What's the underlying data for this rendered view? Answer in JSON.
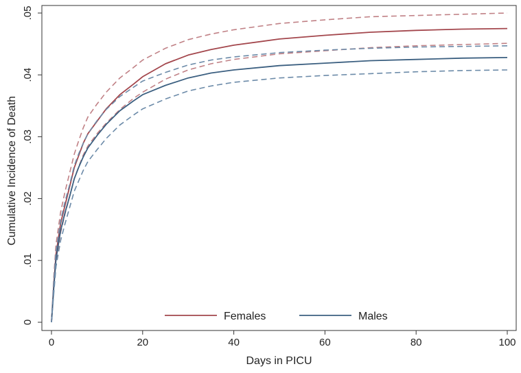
{
  "chart_data": {
    "type": "line",
    "title": "",
    "xlabel": "Days in PICU",
    "ylabel": "Cumulative Incidence of Death",
    "xlim": [
      0,
      100
    ],
    "ylim": [
      0,
      0.05
    ],
    "x_ticks": [
      0,
      20,
      40,
      60,
      80,
      100
    ],
    "x_tick_labels": [
      "0",
      "20",
      "40",
      "60",
      "80",
      "100"
    ],
    "y_ticks": [
      0,
      0.01,
      0.02,
      0.03,
      0.04,
      0.05
    ],
    "y_tick_labels": [
      "0",
      ".01",
      ".02",
      ".03",
      ".04",
      ".05"
    ],
    "grid": false,
    "legend_position": "bottom-center",
    "series": [
      {
        "name": "Females",
        "color": "#a3464c",
        "style": "solid",
        "legend": true,
        "points": [
          [
            0,
            0
          ],
          [
            0.5,
            0.006
          ],
          [
            1,
            0.011
          ],
          [
            2,
            0.016
          ],
          [
            3,
            0.019
          ],
          [
            4,
            0.022
          ],
          [
            5,
            0.025
          ],
          [
            6,
            0.027
          ],
          [
            7,
            0.029
          ],
          [
            8,
            0.0305
          ],
          [
            10,
            0.0325
          ],
          [
            12,
            0.0345
          ],
          [
            15,
            0.0368
          ],
          [
            18,
            0.0385
          ],
          [
            20,
            0.0397
          ],
          [
            25,
            0.0418
          ],
          [
            30,
            0.0432
          ],
          [
            35,
            0.0441
          ],
          [
            40,
            0.0448
          ],
          [
            50,
            0.0458
          ],
          [
            60,
            0.0464
          ],
          [
            70,
            0.0469
          ],
          [
            80,
            0.0472
          ],
          [
            90,
            0.0474
          ],
          [
            100,
            0.0475
          ]
        ]
      },
      {
        "name": "Females upper CI",
        "color": "#c08085",
        "style": "dashed",
        "legend": false,
        "points": [
          [
            0,
            0
          ],
          [
            0.5,
            0.0072
          ],
          [
            1,
            0.0126
          ],
          [
            2,
            0.0178
          ],
          [
            3,
            0.0212
          ],
          [
            4,
            0.0242
          ],
          [
            5,
            0.0272
          ],
          [
            6,
            0.0294
          ],
          [
            7,
            0.0315
          ],
          [
            8,
            0.0332
          ],
          [
            10,
            0.0353
          ],
          [
            12,
            0.0372
          ],
          [
            15,
            0.0395
          ],
          [
            18,
            0.0412
          ],
          [
            20,
            0.0424
          ],
          [
            25,
            0.0443
          ],
          [
            30,
            0.0457
          ],
          [
            35,
            0.0466
          ],
          [
            40,
            0.0473
          ],
          [
            50,
            0.0483
          ],
          [
            60,
            0.0489
          ],
          [
            70,
            0.0494
          ],
          [
            80,
            0.0496
          ],
          [
            90,
            0.0498
          ],
          [
            100,
            0.05
          ]
        ]
      },
      {
        "name": "Females lower CI",
        "color": "#c08085",
        "style": "dashed",
        "legend": false,
        "points": [
          [
            0,
            0
          ],
          [
            0.5,
            0.0052
          ],
          [
            1,
            0.0098
          ],
          [
            2,
            0.0145
          ],
          [
            3,
            0.0176
          ],
          [
            4,
            0.0204
          ],
          [
            5,
            0.0232
          ],
          [
            6,
            0.0252
          ],
          [
            7,
            0.0271
          ],
          [
            8,
            0.0285
          ],
          [
            10,
            0.0305
          ],
          [
            12,
            0.0322
          ],
          [
            15,
            0.0344
          ],
          [
            18,
            0.0362
          ],
          [
            20,
            0.0372
          ],
          [
            25,
            0.0393
          ],
          [
            30,
            0.0408
          ],
          [
            35,
            0.0418
          ],
          [
            40,
            0.0425
          ],
          [
            50,
            0.0434
          ],
          [
            60,
            0.0439
          ],
          [
            70,
            0.0444
          ],
          [
            80,
            0.0447
          ],
          [
            90,
            0.0449
          ],
          [
            100,
            0.0451
          ]
        ]
      },
      {
        "name": "Males",
        "color": "#3b5f80",
        "style": "solid",
        "legend": true,
        "points": [
          [
            0,
            0
          ],
          [
            0.5,
            0.0055
          ],
          [
            1,
            0.0102
          ],
          [
            2,
            0.0148
          ],
          [
            3,
            0.0178
          ],
          [
            4,
            0.0204
          ],
          [
            5,
            0.0232
          ],
          [
            6,
            0.0251
          ],
          [
            7,
            0.0268
          ],
          [
            8,
            0.0282
          ],
          [
            10,
            0.0302
          ],
          [
            12,
            0.032
          ],
          [
            15,
            0.0342
          ],
          [
            18,
            0.0358
          ],
          [
            20,
            0.0368
          ],
          [
            25,
            0.0383
          ],
          [
            30,
            0.0395
          ],
          [
            35,
            0.0403
          ],
          [
            40,
            0.0408
          ],
          [
            50,
            0.0415
          ],
          [
            60,
            0.0419
          ],
          [
            70,
            0.0423
          ],
          [
            80,
            0.0425
          ],
          [
            90,
            0.0427
          ],
          [
            100,
            0.0428
          ]
        ]
      },
      {
        "name": "Males upper CI",
        "color": "#6b8aa8",
        "style": "dashed",
        "legend": false,
        "points": [
          [
            0,
            0
          ],
          [
            0.5,
            0.0064
          ],
          [
            1,
            0.0114
          ],
          [
            2,
            0.0164
          ],
          [
            3,
            0.0196
          ],
          [
            4,
            0.0223
          ],
          [
            5,
            0.0253
          ],
          [
            6,
            0.0273
          ],
          [
            7,
            0.029
          ],
          [
            8,
            0.0305
          ],
          [
            10,
            0.0326
          ],
          [
            12,
            0.0344
          ],
          [
            15,
            0.0365
          ],
          [
            18,
            0.038
          ],
          [
            20,
            0.039
          ],
          [
            25,
            0.0404
          ],
          [
            30,
            0.0416
          ],
          [
            35,
            0.0424
          ],
          [
            40,
            0.0429
          ],
          [
            50,
            0.0436
          ],
          [
            60,
            0.044
          ],
          [
            70,
            0.0443
          ],
          [
            80,
            0.0445
          ],
          [
            90,
            0.0446
          ],
          [
            100,
            0.0447
          ]
        ]
      },
      {
        "name": "Males lower CI",
        "color": "#6b8aa8",
        "style": "dashed",
        "legend": false,
        "points": [
          [
            0,
            0
          ],
          [
            0.5,
            0.0046
          ],
          [
            1,
            0.009
          ],
          [
            2,
            0.0132
          ],
          [
            3,
            0.016
          ],
          [
            4,
            0.0186
          ],
          [
            5,
            0.0212
          ],
          [
            6,
            0.0229
          ],
          [
            7,
            0.0246
          ],
          [
            8,
            0.026
          ],
          [
            10,
            0.0279
          ],
          [
            12,
            0.0297
          ],
          [
            15,
            0.0319
          ],
          [
            18,
            0.0335
          ],
          [
            20,
            0.0345
          ],
          [
            25,
            0.0361
          ],
          [
            30,
            0.0374
          ],
          [
            35,
            0.0382
          ],
          [
            40,
            0.0388
          ],
          [
            50,
            0.0395
          ],
          [
            60,
            0.0399
          ],
          [
            70,
            0.0402
          ],
          [
            80,
            0.0405
          ],
          [
            90,
            0.0407
          ],
          [
            100,
            0.0408
          ]
        ]
      }
    ]
  }
}
